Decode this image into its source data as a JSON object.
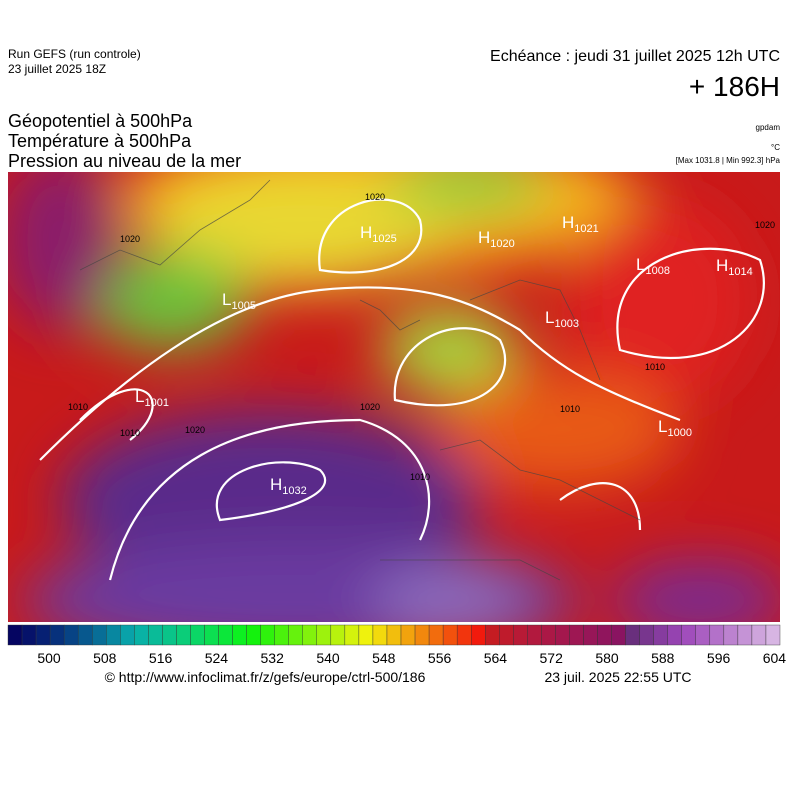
{
  "header": {
    "run": "Run GEFS (run controle)",
    "run_date": "23 juillet 2025 18Z",
    "valid": "Echéance : jeudi 31 juillet 2025 12h UTC",
    "lead": "+ 186H"
  },
  "fields": [
    "Géopotentiel à 500hPa",
    "Température à 500hPa",
    "Pression au niveau de la mer"
  ],
  "units": {
    "geopotential": "gpdam",
    "temperature": "°C",
    "pressure": "[Max 1031.8 | Min 992.3] hPa"
  },
  "centers": [
    {
      "letter": "H",
      "value": "1032"
    },
    {
      "letter": "L",
      "value": "1001"
    },
    {
      "letter": "L",
      "value": "1005"
    },
    {
      "letter": "H",
      "value": "1025"
    },
    {
      "letter": "H",
      "value": "1020"
    },
    {
      "letter": "H",
      "value": "1021"
    },
    {
      "letter": "L",
      "value": "1008"
    },
    {
      "letter": "H",
      "value": "1014"
    },
    {
      "letter": "L",
      "value": "1003"
    },
    {
      "letter": "L",
      "value": "1000"
    }
  ],
  "contour_labels": [
    "1020",
    "1020",
    "1010",
    "1010",
    "1020",
    "1020",
    "1010",
    "1010",
    "1010",
    "1020"
  ],
  "colorbar": {
    "ticks": [
      "500",
      "508",
      "516",
      "524",
      "532",
      "540",
      "548",
      "556",
      "564",
      "572",
      "580",
      "588",
      "596",
      "604"
    ]
  },
  "footer": {
    "source": "© http://www.infoclimat.fr/z/gefs/europe/ctrl-500/186",
    "generated": "23 juil. 2025 22:55 UTC"
  }
}
